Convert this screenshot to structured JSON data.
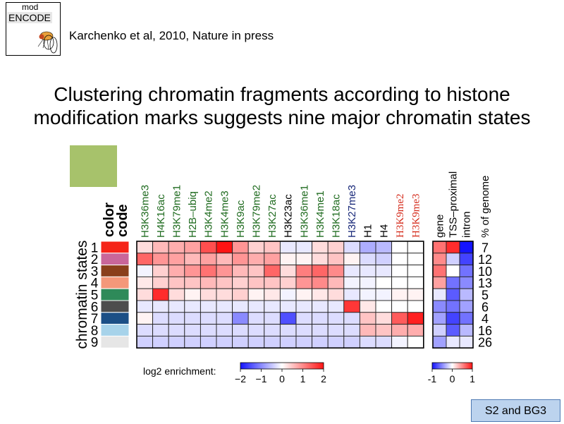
{
  "header": {
    "logo_text_top": "mod",
    "logo_text_main": "ENCODE",
    "citation": "Karchenko et al, 2010, Nature in press"
  },
  "title": {
    "line1": "Clustering chromatin fragments according to histone",
    "line2": "modification marks suggests nine major chromatin states"
  },
  "badge": "S2 and BG3",
  "colors": {
    "swatch": "#a7c26b",
    "badge_bg": "#bcd3ee",
    "badge_border": "#4d79b3"
  },
  "chart_data": {
    "type": "heatmap",
    "row_axis_label": "chromatin states",
    "color_code_label_1": "color",
    "color_code_label_2": "code",
    "rows": [
      "1",
      "2",
      "3",
      "4",
      "5",
      "6",
      "7",
      "8",
      "9"
    ],
    "state_colors": [
      "#f52418",
      "#c9669a",
      "#8a3f1b",
      "#f4987a",
      "#2e8a59",
      "#4d4d4d",
      "#1b4f86",
      "#a7d3ea",
      "#e6e6e6"
    ],
    "columns": [
      {
        "name": "H3K36me3",
        "color": "#1f6b1f"
      },
      {
        "name": "H4K16ac",
        "color": "#1f6b1f"
      },
      {
        "name": "H3K79me1",
        "color": "#1f6b1f"
      },
      {
        "name": "H2B–ubiq",
        "color": "#1f6b1f"
      },
      {
        "name": "H3K4me2",
        "color": "#1f6b1f"
      },
      {
        "name": "H3K4me3",
        "color": "#1f6b1f"
      },
      {
        "name": "H3K9ac",
        "color": "#1f6b1f"
      },
      {
        "name": "H3K79me2",
        "color": "#1f6b1f"
      },
      {
        "name": "H3K27ac",
        "color": "#1f6b1f"
      },
      {
        "name": "H3K23ac",
        "color": "#000000"
      },
      {
        "name": "H3K36me1",
        "color": "#1f6b1f"
      },
      {
        "name": "H3K4me1",
        "color": "#1f6b1f"
      },
      {
        "name": "H3K18ac",
        "color": "#1f6b1f"
      },
      {
        "name": "H3K27me3",
        "color": "#1a2a7a"
      },
      {
        "name": "H1",
        "color": "#000000"
      },
      {
        "name": "H4",
        "color": "#000000"
      },
      {
        "name": "H3K9me2",
        "color": "#d42a1a"
      },
      {
        "name": "H3K9me3",
        "color": "#d42a1a"
      }
    ],
    "values": [
      [
        0.3,
        0.6,
        0.7,
        0.8,
        1.5,
        2.0,
        0.9,
        0.4,
        0.5,
        -0.2,
        -0.2,
        0.3,
        0.4,
        -0.3,
        -0.7,
        -0.6,
        0.0,
        0.0
      ],
      [
        1.3,
        0.9,
        0.8,
        0.6,
        0.8,
        0.6,
        0.9,
        0.7,
        0.8,
        0.1,
        0.1,
        0.3,
        0.5,
        0.1,
        -0.3,
        -0.4,
        0.0,
        0.0
      ],
      [
        -0.1,
        0.4,
        0.7,
        0.9,
        1.2,
        0.9,
        0.6,
        0.5,
        1.3,
        0.3,
        1.1,
        1.3,
        1.0,
        -0.2,
        -0.2,
        -0.2,
        0.0,
        0.0
      ],
      [
        0.2,
        0.4,
        0.5,
        0.5,
        0.6,
        0.5,
        0.4,
        0.5,
        0.5,
        0.4,
        0.9,
        1.0,
        0.6,
        -0.1,
        -0.1,
        0.0,
        0.0,
        0.0
      ],
      [
        0.3,
        1.8,
        0.3,
        0.1,
        0.3,
        0.3,
        0.4,
        0.1,
        0.2,
        -0.1,
        0.1,
        0.2,
        0.3,
        -0.2,
        -0.1,
        -0.1,
        0.1,
        0.1
      ],
      [
        -0.2,
        -0.2,
        -0.2,
        -0.2,
        -0.2,
        -0.2,
        -0.2,
        -0.2,
        -0.2,
        -0.2,
        -0.2,
        -0.2,
        -0.2,
        1.7,
        0.2,
        0.0,
        0.0,
        0.0
      ],
      [
        0.1,
        -0.3,
        -0.3,
        -0.3,
        -0.3,
        -0.3,
        -1.0,
        -0.3,
        -0.3,
        -1.5,
        -0.3,
        -0.3,
        -0.3,
        -0.3,
        0.5,
        0.3,
        1.4,
        1.9
      ],
      [
        -0.3,
        -0.3,
        -0.3,
        -0.3,
        -0.3,
        -0.3,
        -0.3,
        -0.3,
        -0.3,
        -0.3,
        -0.3,
        -0.3,
        -0.3,
        -0.3,
        0.6,
        0.5,
        0.7,
        0.7
      ],
      [
        -0.4,
        -0.4,
        -0.4,
        -0.4,
        -0.4,
        -0.4,
        -0.4,
        -0.4,
        -0.4,
        -0.4,
        -0.4,
        -0.4,
        -0.4,
        -0.4,
        -0.3,
        -0.3,
        -0.1,
        0.0
      ]
    ],
    "genomic_columns": [
      "gene",
      "TSS–proximal",
      "intron"
    ],
    "genomic_values": [
      [
        0.6,
        0.9,
        -1.0
      ],
      [
        0.5,
        -0.2,
        -0.8
      ],
      [
        0.6,
        0.0,
        -0.6
      ],
      [
        0.4,
        -0.6,
        -0.5
      ],
      [
        -0.1,
        -0.7,
        -0.3
      ],
      [
        -0.5,
        -0.6,
        -0.4
      ],
      [
        -0.4,
        -0.8,
        -0.6
      ],
      [
        -0.2,
        -0.7,
        -0.3
      ],
      [
        -0.4,
        -0.1,
        -0.1
      ]
    ],
    "pct_header": "% of genome",
    "pct_of_genome": [
      "7",
      "12",
      "10",
      "13",
      "5",
      "6",
      "4",
      "16",
      "26"
    ],
    "legend_main": {
      "label": "log2 enrichment:",
      "ticks": [
        "−2",
        "−1",
        "0",
        "1",
        "2"
      ],
      "range": [
        -2,
        2
      ]
    },
    "legend_genomic": {
      "ticks": [
        "-1",
        "0",
        "1"
      ],
      "range": [
        -1,
        1
      ]
    }
  }
}
